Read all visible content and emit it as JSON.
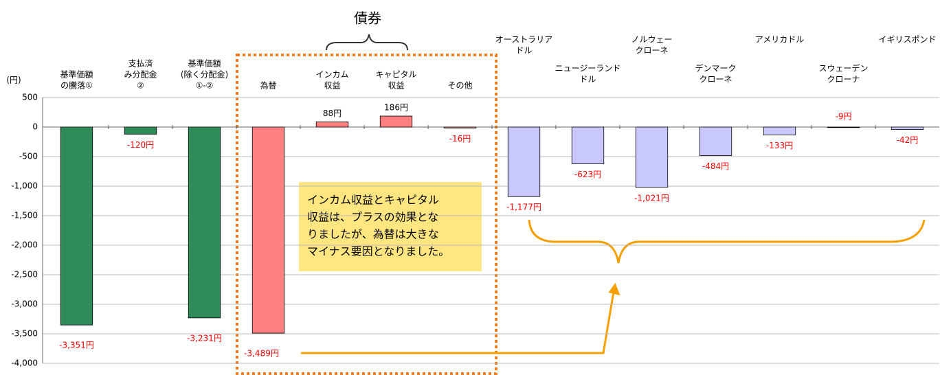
{
  "chart_data": {
    "type": "bar",
    "unit_label": "(円)",
    "categories": [
      [
        "基準価額",
        "の騰落①"
      ],
      [
        "支払済",
        "み分配金",
        "②"
      ],
      [
        "基準価額",
        "(除く分配金)",
        "①-②"
      ],
      [
        "為替"
      ],
      [
        "インカム",
        "収益"
      ],
      [
        "キャピタル",
        "収益"
      ],
      [
        "その他"
      ],
      [
        "オーストラリア",
        "ドル"
      ],
      [
        "ニュージーランド",
        "ドル"
      ],
      [
        "ノルウェー",
        "クローネ"
      ],
      [
        "デンマーク",
        "クローネ"
      ],
      [
        "アメリカドル"
      ],
      [
        "スウェーデン",
        "クローナ"
      ],
      [
        "イギリスポンド"
      ]
    ],
    "values": [
      -3351,
      -120,
      -3231,
      -3489,
      88,
      186,
      -16,
      -1177,
      -623,
      -1021,
      -484,
      -133,
      -9,
      -42
    ],
    "value_labels": [
      "-3,351円",
      "-120円",
      "-3,231円",
      "-3,489円",
      "88円",
      "186円",
      "-16円",
      "-1,177円",
      "-623円",
      "-1,021円",
      "-484円",
      "-133円",
      "-9円",
      "-42円"
    ],
    "colors": [
      "#2e8b57",
      "#2e8b57",
      "#2e8b57",
      "#ff8080",
      "#ff8080",
      "#ff8080",
      "#ff8080",
      "#c8c8ff",
      "#c8c8ff",
      "#c8c8ff",
      "#c8c8ff",
      "#c8c8ff",
      "#c8c8ff",
      "#c8c8ff"
    ],
    "ylim": [
      -4000,
      500
    ],
    "yticks": [
      500,
      0,
      -500,
      {
        "value": -1000,
        "label": "-1,000"
      },
      {
        "value": -1500,
        "label": "-1,500"
      },
      {
        "value": -2000,
        "label": "-2,000"
      },
      {
        "value": -2500,
        "label": "-2,500"
      },
      {
        "value": -3000,
        "label": "-3,000"
      },
      {
        "value": -3500,
        "label": "-3,500"
      },
      {
        "value": -4000,
        "label": "-4,000"
      }
    ],
    "grid": true,
    "group_label": "債券",
    "annotation": [
      "インカム収益とキャピタル",
      "収益は、プラスの効果とな",
      "りましたが、為替は大きな",
      "マイナス要因となりました。"
    ]
  }
}
